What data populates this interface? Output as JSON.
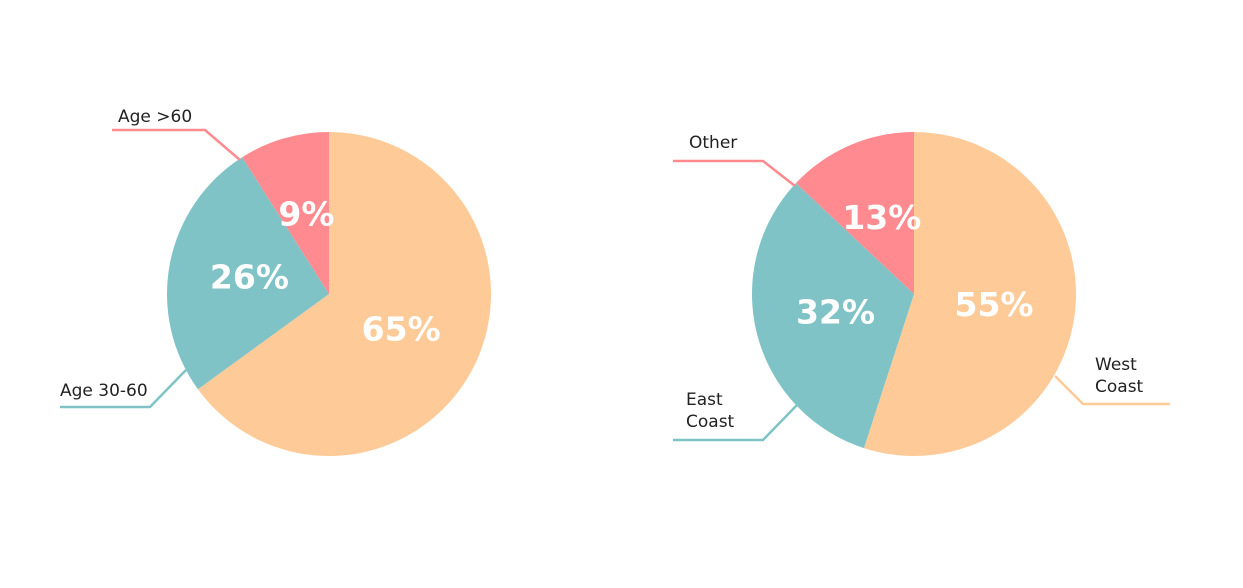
{
  "chart_data": [
    {
      "type": "pie",
      "categories": [
        null,
        "Age 30-60",
        "Age >60"
      ],
      "values": [
        65,
        26,
        9
      ],
      "value_labels": [
        "65%",
        "26%",
        "9%"
      ],
      "colors": [
        "#fecb98",
        "#80c3c6",
        "#ff8a8f"
      ]
    },
    {
      "type": "pie",
      "categories": [
        "West Coast",
        "East Coast",
        "Other"
      ],
      "values": [
        55,
        32,
        13
      ],
      "value_labels": [
        "55%",
        "32%",
        "13%"
      ],
      "colors": [
        "#fecb98",
        "#80c3c6",
        "#ff8a8f"
      ]
    }
  ]
}
